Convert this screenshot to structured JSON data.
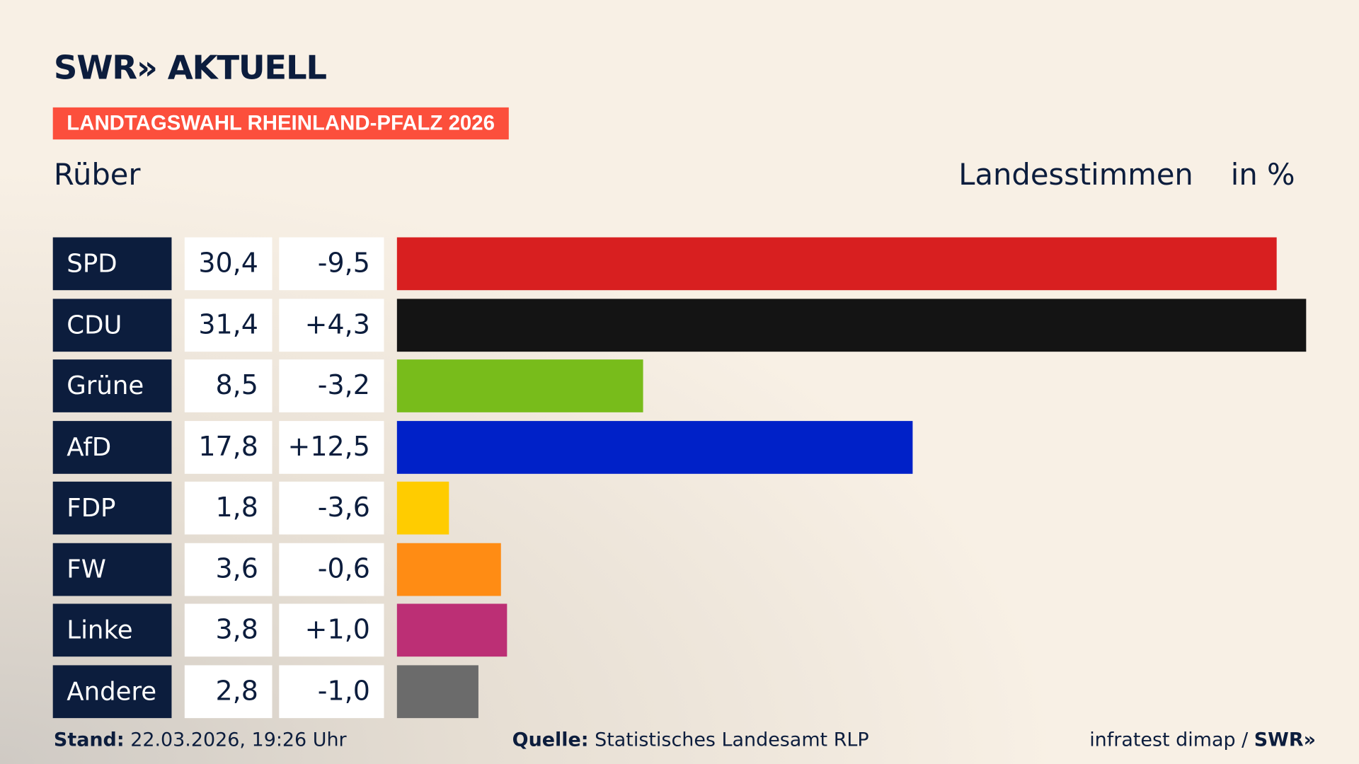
{
  "header": {
    "logo": "SWR» AKTUELL",
    "tag": "LANDTAGSWAHL RHEINLAND-PFALZ 2026",
    "region": "Rüber",
    "measure": "Landesstimmen",
    "unit": "in %"
  },
  "chart_data": {
    "type": "bar",
    "orientation": "horizontal",
    "categories": [
      "SPD",
      "CDU",
      "Grüne",
      "AfD",
      "FDP",
      "FW",
      "Linke",
      "Andere"
    ],
    "values": [
      30.4,
      31.4,
      8.5,
      17.8,
      1.8,
      3.6,
      3.8,
      2.8
    ],
    "value_labels": [
      "30,4",
      "31,4",
      "8,5",
      "17,8",
      "1,8",
      "3,6",
      "3,8",
      "2,8"
    ],
    "diff_labels": [
      "-9,5",
      "+4,3",
      "-3,2",
      "+12,5",
      "-3,6",
      "-0,6",
      "+1,0",
      "-1,0"
    ],
    "colors": [
      "#d81f20",
      "#141414",
      "#78bc1b",
      "#0021c8",
      "#ffcc00",
      "#ff8c14",
      "#bc2f75",
      "#6b6b6b"
    ],
    "grid": false
  },
  "footer": {
    "stand_label": "Stand:",
    "stand": "22.03.2026, 19:26 Uhr",
    "source_label": "Quelle:",
    "source": "Statistisches Landesamt RLP",
    "credit": "infratest dimap / ",
    "credit_logo": "SWR»"
  }
}
